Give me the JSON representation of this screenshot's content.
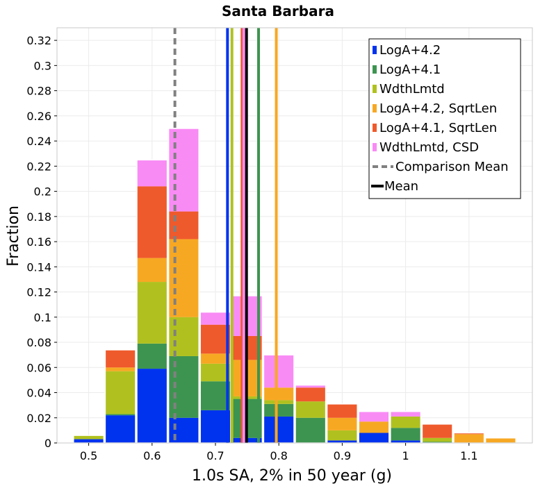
{
  "chart_data": {
    "type": "bar",
    "stacked": true,
    "title": "Santa Barbara",
    "xlabel": "1.0s SA, 2% in 50 year (g)",
    "ylabel": "Fraction",
    "xlim": [
      0.45,
      1.2
    ],
    "ylim": [
      0,
      0.33
    ],
    "grid": true,
    "bin_width": 0.05,
    "x_ticks": [
      {
        "value": 0.5,
        "label": "0.5"
      },
      {
        "value": 0.6,
        "label": "0.6"
      },
      {
        "value": 0.7,
        "label": "0.7"
      },
      {
        "value": 0.8,
        "label": "0.8"
      },
      {
        "value": 0.9,
        "label": "0.9"
      },
      {
        "value": 1.0,
        "label": "1"
      },
      {
        "value": 1.1,
        "label": "1.1"
      }
    ],
    "y_ticks": [
      {
        "value": 0,
        "label": "0"
      },
      {
        "value": 0.02,
        "label": "0.02"
      },
      {
        "value": 0.04,
        "label": "0.04"
      },
      {
        "value": 0.06,
        "label": "0.06"
      },
      {
        "value": 0.08,
        "label": "0.08"
      },
      {
        "value": 0.1,
        "label": "0.1"
      },
      {
        "value": 0.12,
        "label": "0.12"
      },
      {
        "value": 0.14,
        "label": "0.14"
      },
      {
        "value": 0.16,
        "label": "0.16"
      },
      {
        "value": 0.18,
        "label": "0.18"
      },
      {
        "value": 0.2,
        "label": "0.2"
      },
      {
        "value": 0.22,
        "label": "0.22"
      },
      {
        "value": 0.24,
        "label": "0.24"
      },
      {
        "value": 0.26,
        "label": "0.26"
      },
      {
        "value": 0.28,
        "label": "0.28"
      },
      {
        "value": 0.3,
        "label": "0.3"
      },
      {
        "value": 0.32,
        "label": "0.32"
      }
    ],
    "bin_centers": [
      0.5,
      0.55,
      0.6,
      0.65,
      0.7,
      0.75,
      0.8,
      0.85,
      0.9,
      0.95,
      1.0,
      1.05,
      1.1,
      1.15,
      1.2
    ],
    "series": [
      {
        "name": "LogA+4.2",
        "color": "#0033ee",
        "values": [
          0.003,
          0.022,
          0.059,
          0.02,
          0.026,
          0.004,
          0.021,
          0.0,
          0.002,
          0.008,
          0.002,
          0.0,
          0.0,
          0.0,
          0.0
        ]
      },
      {
        "name": "LogA+4.1",
        "color": "#3d9450",
        "values": [
          0.0,
          0.001,
          0.02,
          0.049,
          0.023,
          0.031,
          0.01,
          0.02,
          0.0,
          0.0,
          0.01,
          0.001,
          0.0,
          0.0,
          0.0
        ]
      },
      {
        "name": "WdthLmtd",
        "color": "#b0c11f",
        "values": [
          0.003,
          0.034,
          0.049,
          0.031,
          0.014,
          0.002,
          0.003,
          0.013,
          0.008,
          0.0,
          0.009,
          0.003,
          0.0,
          0.0,
          0.0
        ]
      },
      {
        "name": "LogA+4.2, SqrtLen",
        "color": "#f7a823",
        "values": [
          0.0,
          0.003,
          0.019,
          0.062,
          0.008,
          0.029,
          0.01,
          0.0,
          0.01,
          0.009,
          0.0,
          0.0,
          0.007,
          0.004,
          0.0
        ]
      },
      {
        "name": "LogA+4.1, SqrtLen",
        "color": "#ef5a2c",
        "values": [
          0.0,
          0.014,
          0.057,
          0.022,
          0.023,
          0.019,
          0.0,
          0.011,
          0.011,
          0.0,
          0.0,
          0.011,
          0.001,
          0.0,
          0.0
        ]
      },
      {
        "name": "WdthLmtd, CSD",
        "color": "#f98bf5",
        "values": [
          0.0,
          0.0,
          0.021,
          0.066,
          0.01,
          0.032,
          0.026,
          0.002,
          0.0,
          0.008,
          0.004,
          0.0,
          0.0,
          0.0,
          0.0
        ]
      }
    ],
    "vertical_lines": [
      {
        "series": "LogA+4.2",
        "x": 0.719,
        "color": "#0033ee",
        "style": "solid"
      },
      {
        "series": "WdthLmtd",
        "x": 0.726,
        "color": "#b0c11f",
        "style": "solid"
      },
      {
        "series": "LogA+4.1, SqrtLen",
        "x": 0.742,
        "color": "#ef5a2c",
        "style": "solid"
      },
      {
        "series": "WdthLmtd, CSD",
        "x": 0.745,
        "color": "#f98bf5",
        "style": "solid"
      },
      {
        "series": "LogA+4.1",
        "x": 0.768,
        "color": "#3d9450",
        "style": "solid"
      },
      {
        "series": "LogA+4.2, SqrtLen",
        "x": 0.796,
        "color": "#f7a823",
        "style": "solid"
      },
      {
        "series": "Comparison Mean",
        "x": 0.636,
        "color": "#808080",
        "style": "dashed"
      },
      {
        "series": "Mean",
        "x": 0.749,
        "color": "#000000",
        "style": "solid"
      }
    ],
    "legend": {
      "position": "top-right",
      "entries": [
        {
          "label": "LogA+4.2",
          "color": "#0033ee",
          "kind": "box"
        },
        {
          "label": "LogA+4.1",
          "color": "#3d9450",
          "kind": "box"
        },
        {
          "label": "WdthLmtd",
          "color": "#b0c11f",
          "kind": "box"
        },
        {
          "label": "LogA+4.2, SqrtLen",
          "color": "#f7a823",
          "kind": "box"
        },
        {
          "label": "LogA+4.1, SqrtLen",
          "color": "#ef5a2c",
          "kind": "box"
        },
        {
          "label": "WdthLmtd, CSD",
          "color": "#f98bf5",
          "kind": "box"
        },
        {
          "label": "Comparison Mean",
          "color": "#808080",
          "kind": "dash"
        },
        {
          "label": "Mean",
          "color": "#000000",
          "kind": "line"
        }
      ]
    }
  }
}
